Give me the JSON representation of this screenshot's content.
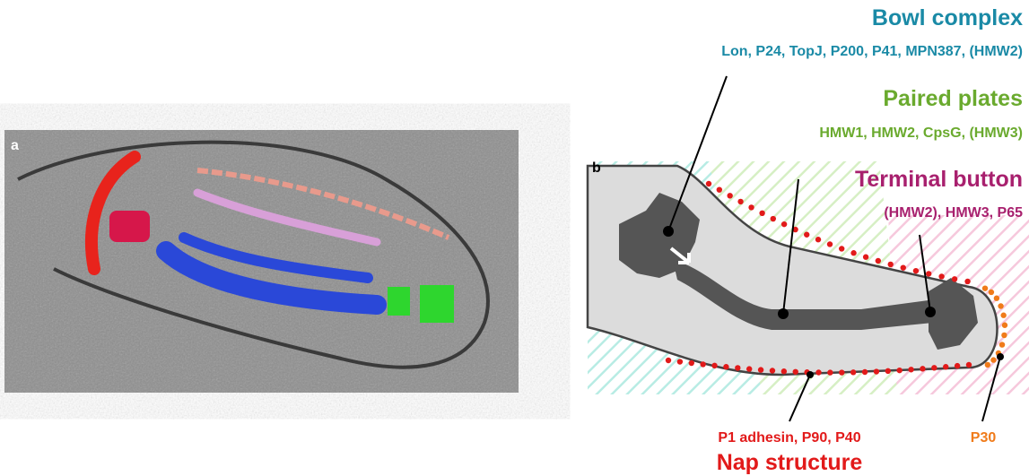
{
  "panel_a": {
    "label": "a"
  },
  "panel_b": {
    "label": "b",
    "annotations": [
      {
        "title": "Bowl complex",
        "proteins": "Lon, P24, TopJ, P200, P41, MPN387, (HMW2)"
      },
      {
        "title": "Paired plates",
        "proteins": "HMW1, HMW2, CpsG, (HMW3)"
      },
      {
        "title": "Terminal button",
        "proteins": "(HMW2), HMW3, P65"
      },
      {
        "title": "Nap structure",
        "proteins": "P1 adhesin, P90, P40"
      },
      {
        "proteins": "P30"
      }
    ]
  }
}
